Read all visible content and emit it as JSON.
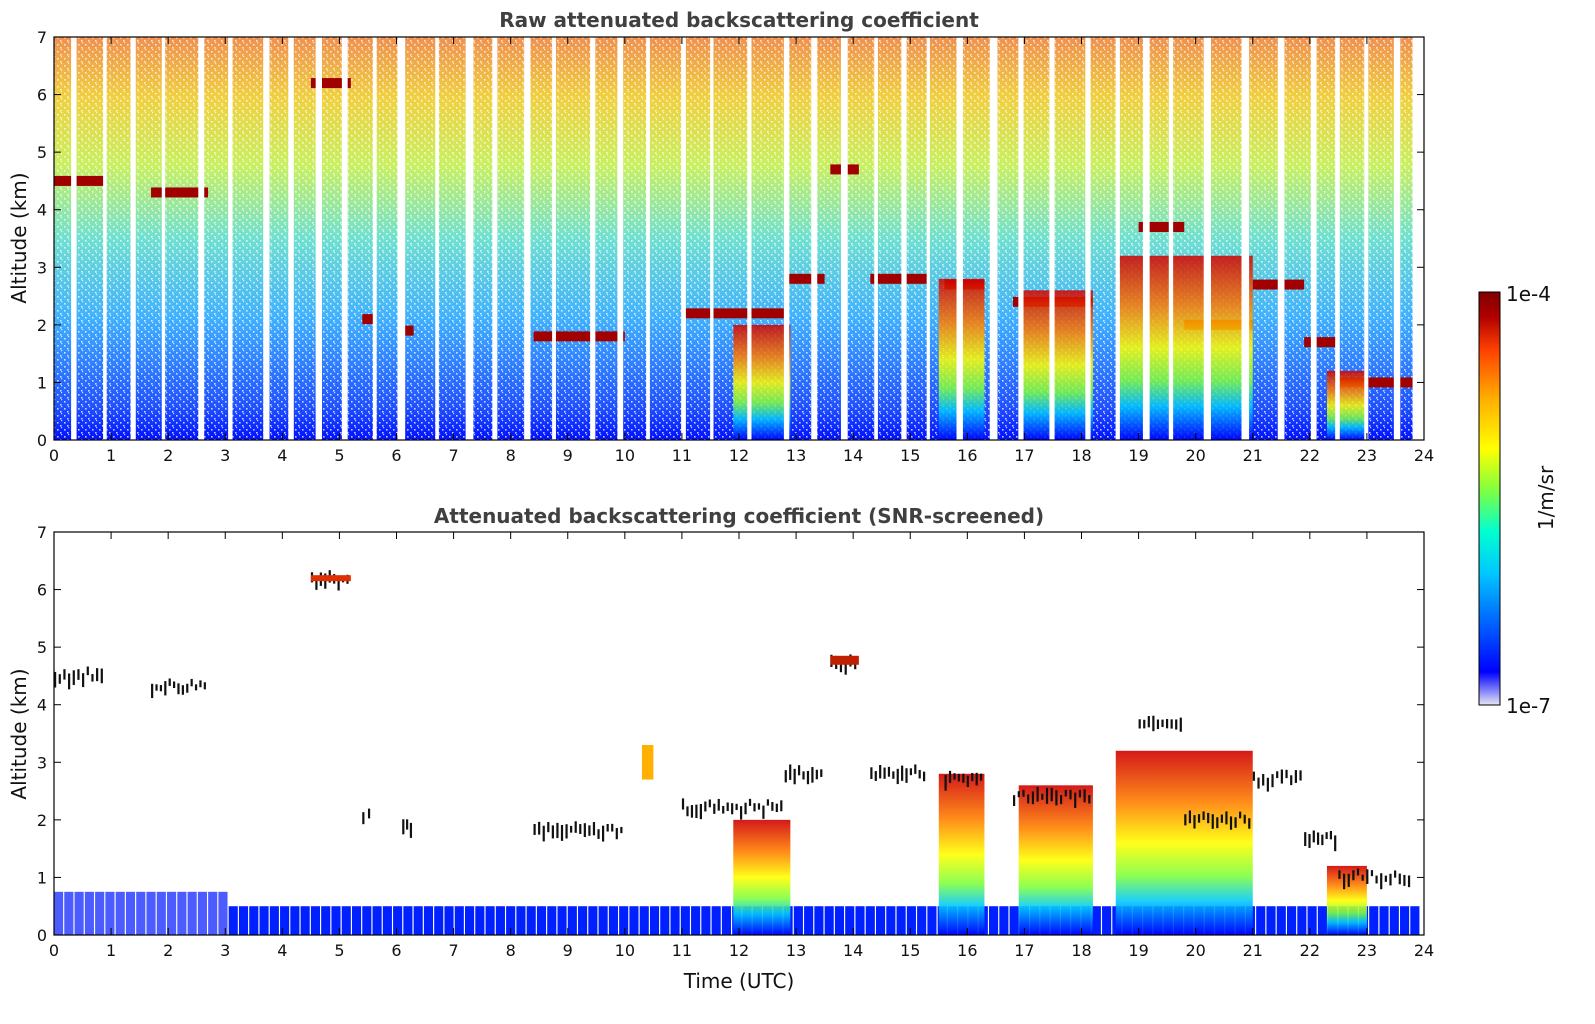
{
  "panels": [
    {
      "title": "Raw attenuated backscattering coefficient",
      "ylabel": "Altitude (km)",
      "xlabel": "",
      "variant": "raw"
    },
    {
      "title": "Attenuated backscattering coefficient (SNR-screened)",
      "ylabel": "Altitude (km)",
      "xlabel": "Time (UTC)",
      "variant": "screened"
    }
  ],
  "colorbar": {
    "label": "1/m/sr",
    "max_label": "1e-4",
    "min_label": "1e-7",
    "colormap": [
      "#e6e6f5",
      "#0000ff",
      "#00c8ff",
      "#00ffd0",
      "#80ff40",
      "#ffff00",
      "#ffb000",
      "#ff4000",
      "#b00000",
      "#800000"
    ]
  },
  "chart_data": {
    "type": "heatmap",
    "x_ticks": [
      0,
      1,
      2,
      3,
      4,
      5,
      6,
      7,
      8,
      9,
      10,
      11,
      12,
      13,
      14,
      15,
      16,
      17,
      18,
      19,
      20,
      21,
      22,
      23,
      24
    ],
    "y_ticks": [
      0,
      1,
      2,
      3,
      4,
      5,
      6,
      7
    ],
    "xlim": [
      0,
      24
    ],
    "ylim": [
      0,
      7
    ],
    "value_range": [
      "1e-7",
      "1e-4"
    ],
    "color_scale": "log",
    "cloud_layers": [
      {
        "start": 0.0,
        "end": 0.9,
        "altitude_km": 4.5
      },
      {
        "start": 1.7,
        "end": 2.7,
        "altitude_km": 4.3
      },
      {
        "start": 4.5,
        "end": 5.2,
        "altitude_km": 6.2
      },
      {
        "start": 5.4,
        "end": 5.6,
        "altitude_km": 2.1
      },
      {
        "start": 6.1,
        "end": 6.3,
        "altitude_km": 1.9
      },
      {
        "start": 8.4,
        "end": 10.0,
        "altitude_km": 1.8
      },
      {
        "start": 11.0,
        "end": 12.8,
        "altitude_km": 2.2
      },
      {
        "start": 12.8,
        "end": 13.5,
        "altitude_km": 2.8
      },
      {
        "start": 13.6,
        "end": 14.1,
        "altitude_km": 4.7
      },
      {
        "start": 14.3,
        "end": 15.3,
        "altitude_km": 2.8
      },
      {
        "start": 15.6,
        "end": 16.3,
        "altitude_km": 2.7
      },
      {
        "start": 16.8,
        "end": 18.2,
        "altitude_km": 2.4
      },
      {
        "start": 19.0,
        "end": 19.8,
        "altitude_km": 3.7
      },
      {
        "start": 19.8,
        "end": 21.0,
        "altitude_km": 2.0
      },
      {
        "start": 21.0,
        "end": 21.9,
        "altitude_km": 2.7
      },
      {
        "start": 21.9,
        "end": 22.5,
        "altitude_km": 1.7
      },
      {
        "start": 22.5,
        "end": 23.8,
        "altitude_km": 1.0
      }
    ],
    "strong_columns": [
      {
        "start": 11.9,
        "end": 12.9,
        "top_km": 2.0
      },
      {
        "start": 15.5,
        "end": 16.3,
        "top_km": 2.8
      },
      {
        "start": 16.9,
        "end": 18.2,
        "top_km": 2.6
      },
      {
        "start": 18.6,
        "end": 21.0,
        "top_km": 3.2
      },
      {
        "start": 22.3,
        "end": 23.0,
        "top_km": 1.2
      }
    ]
  }
}
